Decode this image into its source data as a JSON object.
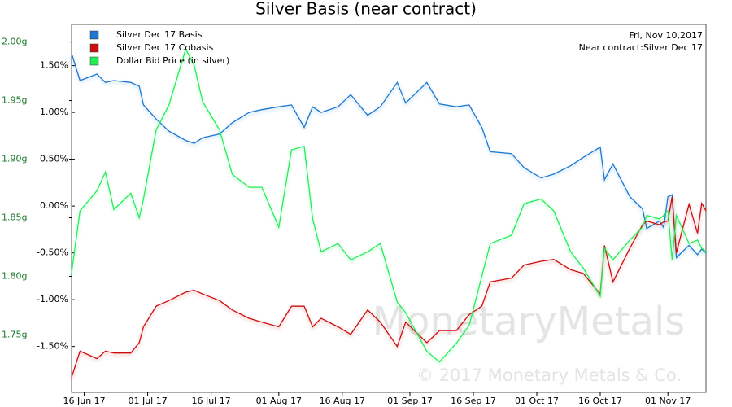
{
  "chart_data": {
    "type": "line",
    "title": "Silver Basis (near contract)",
    "annotations": [
      "Fri, Nov 10,2017",
      "Near contract:Silver Dec 17"
    ],
    "watermark": [
      "MonetaryMetals",
      "© 2017 Monetary Metals & Co."
    ],
    "x": [
      "2017-06-13",
      "2017-06-15",
      "2017-06-19",
      "2017-06-21",
      "2017-06-23",
      "2017-06-27",
      "2017-06-29",
      "2017-06-30",
      "2017-07-03",
      "2017-07-06",
      "2017-07-10",
      "2017-07-12",
      "2017-07-14",
      "2017-07-18",
      "2017-07-21",
      "2017-07-25",
      "2017-07-28",
      "2017-08-01",
      "2017-08-04",
      "2017-08-07",
      "2017-08-09",
      "2017-08-11",
      "2017-08-15",
      "2017-08-18",
      "2017-08-22",
      "2017-08-25",
      "2017-08-29",
      "2017-08-31",
      "2017-09-05",
      "2017-09-08",
      "2017-09-12",
      "2017-09-15",
      "2017-09-18",
      "2017-09-20",
      "2017-09-25",
      "2017-09-28",
      "2017-10-02",
      "2017-10-05",
      "2017-10-09",
      "2017-10-12",
      "2017-10-16",
      "2017-10-17",
      "2017-10-19",
      "2017-10-23",
      "2017-10-26",
      "2017-10-27",
      "2017-10-30",
      "2017-10-31",
      "2017-11-01",
      "2017-11-02",
      "2017-11-03",
      "2017-11-06",
      "2017-11-08",
      "2017-11-09",
      "2017-11-10"
    ],
    "series": [
      {
        "name": "Silver Dec 17 Basis",
        "color": "#1f77d0",
        "axis": "y",
        "values": [
          1.63,
          1.34,
          1.41,
          1.32,
          1.34,
          1.32,
          1.28,
          1.08,
          0.93,
          0.8,
          0.7,
          0.67,
          0.73,
          0.77,
          0.89,
          1.0,
          1.03,
          1.06,
          1.08,
          0.84,
          1.06,
          1.0,
          1.06,
          1.19,
          0.97,
          1.06,
          1.32,
          1.1,
          1.32,
          1.09,
          1.06,
          1.08,
          0.84,
          0.58,
          0.56,
          0.41,
          0.3,
          0.34,
          0.43,
          0.52,
          0.63,
          0.28,
          0.45,
          0.1,
          -0.03,
          -0.24,
          -0.16,
          -0.23,
          0.1,
          0.12,
          -0.55,
          -0.42,
          -0.52,
          -0.46,
          -0.5
        ]
      },
      {
        "name": "Silver Dec 17 Cobasis",
        "color": "#cc1111",
        "axis": "y",
        "values": [
          -1.83,
          -1.55,
          -1.63,
          -1.55,
          -1.57,
          -1.57,
          -1.46,
          -1.29,
          -1.07,
          -1.01,
          -0.92,
          -0.9,
          -0.94,
          -1.01,
          -1.11,
          -1.2,
          -1.24,
          -1.29,
          -1.07,
          -1.07,
          -1.29,
          -1.2,
          -1.29,
          -1.37,
          -1.11,
          -1.24,
          -1.5,
          -1.24,
          -1.46,
          -1.33,
          -1.33,
          -1.16,
          -1.07,
          -0.81,
          -0.77,
          -0.63,
          -0.59,
          -0.57,
          -0.68,
          -0.72,
          -0.94,
          -0.42,
          -0.81,
          -0.45,
          -0.2,
          -0.16,
          -0.2,
          -0.17,
          -0.16,
          0.1,
          -0.5,
          0.02,
          -0.29,
          0.03,
          -0.05
        ]
      },
      {
        "name": "Dollar Bid Price (in silver)",
        "color": "#22ee55",
        "axis": "y2",
        "values": [
          1.803,
          1.856,
          1.873,
          1.889,
          1.857,
          1.871,
          1.85,
          1.866,
          1.925,
          1.946,
          1.994,
          1.98,
          1.949,
          1.925,
          1.887,
          1.876,
          1.876,
          1.842,
          1.908,
          1.911,
          1.849,
          1.821,
          1.828,
          1.814,
          1.821,
          1.828,
          1.778,
          1.769,
          1.736,
          1.727,
          1.743,
          1.758,
          1.8,
          1.828,
          1.835,
          1.862,
          1.866,
          1.856,
          1.821,
          1.807,
          1.783,
          1.824,
          1.814,
          1.831,
          1.842,
          1.852,
          1.849,
          1.852,
          1.856,
          1.814,
          1.852,
          1.828,
          1.831,
          1.824,
          1.821
        ]
      }
    ],
    "xlim": [
      "2017-06-13",
      "2017-11-10"
    ],
    "xticks": [
      {
        "value": "2017-06-16",
        "label": "16 Jun 17"
      },
      {
        "value": "2017-07-01",
        "label": "01 Jul 17"
      },
      {
        "value": "2017-07-16",
        "label": "16 Jul 17"
      },
      {
        "value": "2017-08-01",
        "label": "01 Aug 17"
      },
      {
        "value": "2017-08-16",
        "label": "16 Aug 17"
      },
      {
        "value": "2017-09-01",
        "label": "01 Sep 17"
      },
      {
        "value": "2017-09-16",
        "label": "16 Sep 17"
      },
      {
        "value": "2017-10-01",
        "label": "01 Oct 17"
      },
      {
        "value": "2017-10-16",
        "label": "16 Oct 17"
      },
      {
        "value": "2017-11-01",
        "label": "01 Nov 17"
      }
    ],
    "ylim": [
      -1.99,
      1.94
    ],
    "yticks": [
      {
        "value": 1.5,
        "label": "1.50%"
      },
      {
        "value": 1,
        "label": "1.00%"
      },
      {
        "value": 0.5,
        "label": "0.50%"
      },
      {
        "value": 0,
        "label": "0.00%"
      },
      {
        "value": -0.5,
        "label": "-0.50%"
      },
      {
        "value": -1,
        "label": "-1.00%"
      },
      {
        "value": -1.5,
        "label": "-1.50%"
      }
    ],
    "y2lim": [
      1.701,
      2.015
    ],
    "y2ticks": [
      {
        "value": 2,
        "label": "2.00g"
      },
      {
        "value": 1.95,
        "label": "1.95g"
      },
      {
        "value": 1.9,
        "label": "1.90g"
      },
      {
        "value": 1.85,
        "label": "1.85g"
      },
      {
        "value": 1.8,
        "label": "1.80g"
      },
      {
        "value": 1.75,
        "label": "1.75g"
      }
    ],
    "y2color": "#1a7a2a",
    "legend": "upper left"
  }
}
